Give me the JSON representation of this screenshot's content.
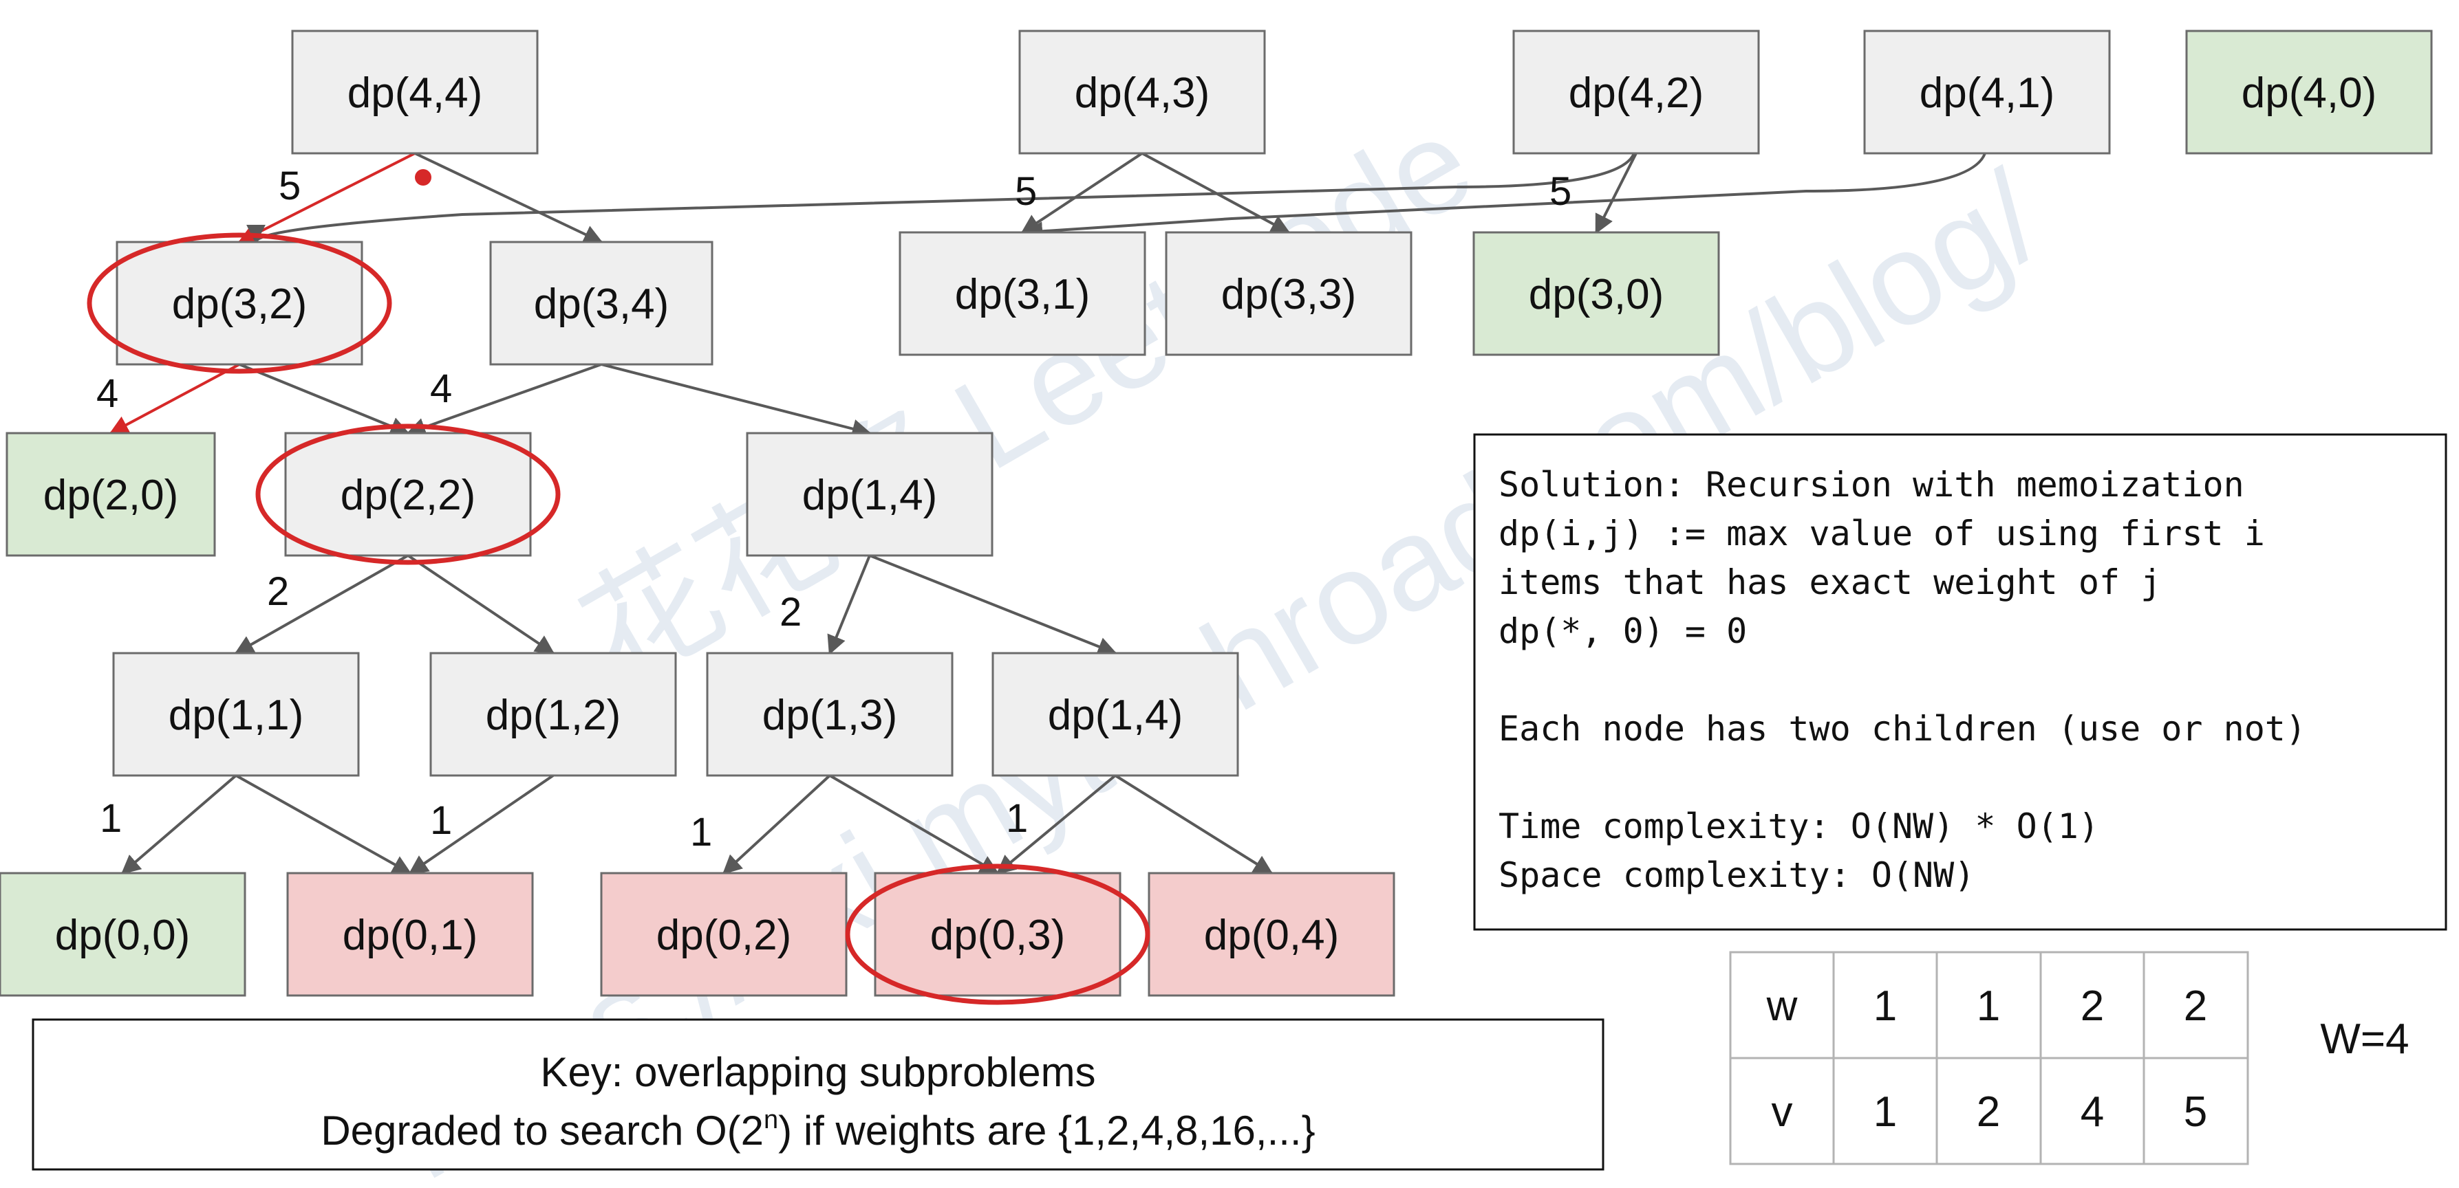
{
  "colors": {
    "node_default": "#efefef",
    "node_base": "#d9ead3",
    "node_repeat": "#f4cccc",
    "node_stroke": "#6b6b6b",
    "edge": "#595959",
    "highlight": "#d62828",
    "watermark": "#c6d4e4"
  },
  "nodes": [
    {
      "id": "n44",
      "label": "dp(4,4)",
      "kind": "default"
    },
    {
      "id": "n43",
      "label": "dp(4,3)",
      "kind": "default"
    },
    {
      "id": "n42",
      "label": "dp(4,2)",
      "kind": "default"
    },
    {
      "id": "n41",
      "label": "dp(4,1)",
      "kind": "default"
    },
    {
      "id": "n40",
      "label": "dp(4,0)",
      "kind": "base"
    },
    {
      "id": "n32",
      "label": "dp(3,2)",
      "kind": "default",
      "circled": true
    },
    {
      "id": "n34",
      "label": "dp(3,4)",
      "kind": "default"
    },
    {
      "id": "n31",
      "label": "dp(3,1)",
      "kind": "default"
    },
    {
      "id": "n33",
      "label": "dp(3,3)",
      "kind": "default"
    },
    {
      "id": "n30",
      "label": "dp(3,0)",
      "kind": "base"
    },
    {
      "id": "n20",
      "label": "dp(2,0)",
      "kind": "base"
    },
    {
      "id": "n22",
      "label": "dp(2,2)",
      "kind": "default",
      "circled": true
    },
    {
      "id": "n14a",
      "label": "dp(1,4)",
      "kind": "default"
    },
    {
      "id": "n11",
      "label": "dp(1,1)",
      "kind": "default"
    },
    {
      "id": "n12",
      "label": "dp(1,2)",
      "kind": "default"
    },
    {
      "id": "n13",
      "label": "dp(1,3)",
      "kind": "default"
    },
    {
      "id": "n14b",
      "label": "dp(1,4)",
      "kind": "default"
    },
    {
      "id": "n00",
      "label": "dp(0,0)",
      "kind": "base"
    },
    {
      "id": "n01",
      "label": "dp(0,1)",
      "kind": "repeat"
    },
    {
      "id": "n02",
      "label": "dp(0,2)",
      "kind": "repeat"
    },
    {
      "id": "n03",
      "label": "dp(0,3)",
      "kind": "repeat",
      "circled": true
    },
    {
      "id": "n04",
      "label": "dp(0,4)",
      "kind": "repeat"
    }
  ],
  "edges": [
    {
      "from": "n44",
      "to": "n32",
      "highlight": true
    },
    {
      "from": "n44",
      "to": "n34"
    },
    {
      "from": "n42",
      "to": "n32",
      "curved": true
    },
    {
      "from": "n41",
      "to": "n31",
      "curved": true
    },
    {
      "from": "n43",
      "to": "n31"
    },
    {
      "from": "n43",
      "to": "n33"
    },
    {
      "from": "n42",
      "to": "n30"
    },
    {
      "from": "n32",
      "to": "n20",
      "highlight": true
    },
    {
      "from": "n32",
      "to": "n22"
    },
    {
      "from": "n34",
      "to": "n22"
    },
    {
      "from": "n34",
      "to": "n14a"
    },
    {
      "from": "n22",
      "to": "n11"
    },
    {
      "from": "n22",
      "to": "n12"
    },
    {
      "from": "n14a",
      "to": "n13"
    },
    {
      "from": "n14a",
      "to": "n14b"
    },
    {
      "from": "n11",
      "to": "n00"
    },
    {
      "from": "n11",
      "to": "n01"
    },
    {
      "from": "n12",
      "to": "n01"
    },
    {
      "from": "n13",
      "to": "n02"
    },
    {
      "from": "n13",
      "to": "n03"
    },
    {
      "from": "n14b",
      "to": "n03"
    },
    {
      "from": "n14b",
      "to": "n04"
    }
  ],
  "edge_labels": [
    {
      "id": "l44",
      "text": "5"
    },
    {
      "id": "l43",
      "text": "5"
    },
    {
      "id": "l42",
      "text": "5"
    },
    {
      "id": "l32",
      "text": "4"
    },
    {
      "id": "l34",
      "text": "4"
    },
    {
      "id": "l22",
      "text": "2"
    },
    {
      "id": "l14",
      "text": "2"
    },
    {
      "id": "l11",
      "text": "1"
    },
    {
      "id": "l12",
      "text": "1"
    },
    {
      "id": "l13",
      "text": "1"
    },
    {
      "id": "l14b",
      "text": "1"
    }
  ],
  "solution_panel": {
    "lines": [
      "Solution: Recursion with memoization",
      "dp(i,j) := max value of using first i",
      "items that has exact weight of j",
      "dp(*, 0) = 0",
      "",
      "Each node has two children (use or not)",
      "",
      "Time complexity: O(NW) * O(1)",
      "Space complexity: O(NW)"
    ]
  },
  "key_box": {
    "line1": "Key: overlapping subproblems",
    "line2_prefix": "Degraded to search O(2",
    "line2_sup": "n",
    "line2_suffix": ") if weights are {1,2,4,8,16,...}"
  },
  "table": {
    "rows": [
      {
        "header": "w",
        "values": [
          "1",
          "1",
          "2",
          "2"
        ]
      },
      {
        "header": "v",
        "values": [
          "1",
          "2",
          "4",
          "5"
        ]
      }
    ]
  },
  "capacity_label": "W=4",
  "watermark": {
    "line1": "花花酱 LeetCode",
    "line2": "https://zxi.mytechroad.com/blog/"
  }
}
